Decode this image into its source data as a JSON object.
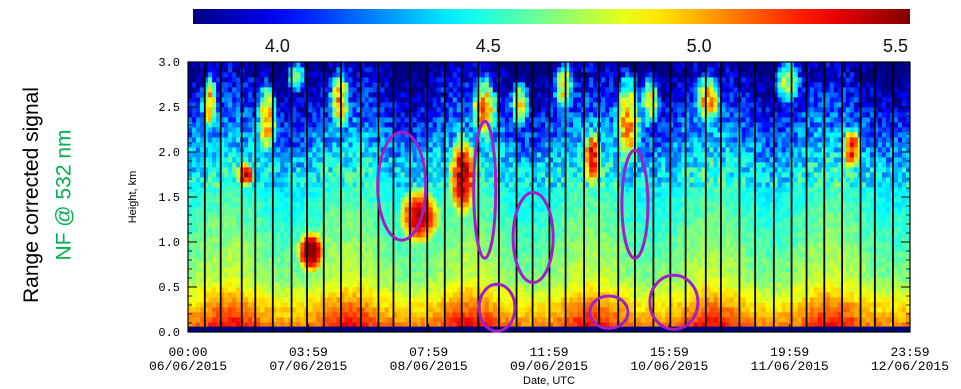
{
  "side_title": {
    "line1": "Range corrected signal",
    "line2": "NF @ 532 nm",
    "line2_color": "#00b050"
  },
  "chart_data": {
    "type": "heatmap",
    "title": "",
    "xlabel": "Date, UTC",
    "ylabel": "Height, km",
    "ylim": [
      0,
      3
    ],
    "y_ticks": [
      "0.0",
      "0.5",
      "1.0",
      "1.5",
      "2.0",
      "2.5",
      "3.0"
    ],
    "x_ticks": [
      {
        "time": "00:00",
        "date": "06/06/2015"
      },
      {
        "time": "03:59",
        "date": "07/06/2015"
      },
      {
        "time": "07:59",
        "date": "08/06/2015"
      },
      {
        "time": "11:59",
        "date": "09/06/2015"
      },
      {
        "time": "15:59",
        "date": "10/06/2015"
      },
      {
        "time": "19:59",
        "date": "11/06/2015"
      },
      {
        "time": "23:59",
        "date": "12/06/2015"
      }
    ],
    "colorbar": {
      "range": [
        3.8,
        5.5
      ],
      "ticks": [
        "4.0",
        "4.5",
        "5.0",
        "5.5"
      ],
      "colormap": "jet"
    },
    "highlight_color": "#a020c8",
    "highlights": [
      {
        "x_frac": 0.296,
        "y_center_km": 1.62,
        "y_half_km": 0.6
      },
      {
        "x_frac": 0.411,
        "y_center_km": 1.58,
        "y_half_km": 0.76
      },
      {
        "x_frac": 0.428,
        "y_center_km": 0.27,
        "y_half_km": 0.26
      },
      {
        "x_frac": 0.478,
        "y_center_km": 1.05,
        "y_half_km": 0.5
      },
      {
        "x_frac": 0.583,
        "y_center_km": 0.22,
        "y_half_km": 0.18
      },
      {
        "x_frac": 0.619,
        "y_center_km": 1.42,
        "y_half_km": 0.6
      },
      {
        "x_frac": 0.673,
        "y_center_km": 0.33,
        "y_half_km": 0.3
      }
    ]
  }
}
